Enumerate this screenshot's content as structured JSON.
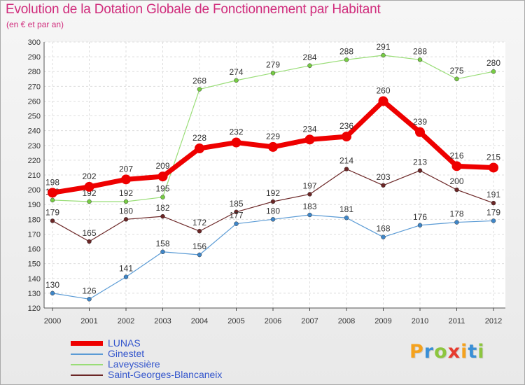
{
  "header": {
    "title": "Evolution de la Dotation Globale de Fonctionnement par Habitant",
    "subtitle": "(en € et par an)"
  },
  "brand": {
    "letters": [
      "P",
      "r",
      "o",
      "x",
      "i",
      "t",
      "i"
    ],
    "colors": [
      "#f5a21d",
      "#3a8fd6",
      "#8dc63f",
      "#e63c2f",
      "#f5a21d",
      "#3a8fd6",
      "#8dc63f"
    ]
  },
  "chart_data": {
    "type": "line",
    "title": "Evolution de la Dotation Globale de Fonctionnement par Habitant",
    "subtitle": "(en € et par an)",
    "xlabel": "",
    "ylabel": "",
    "x": [
      "2000",
      "2001",
      "2002",
      "2003",
      "2004",
      "2005",
      "2006",
      "2007",
      "2008",
      "2009",
      "2010",
      "2011",
      "2012"
    ],
    "ylim": [
      120,
      300
    ],
    "yticks": [
      120,
      130,
      140,
      150,
      160,
      170,
      180,
      190,
      200,
      210,
      220,
      230,
      240,
      250,
      260,
      270,
      280,
      290,
      300
    ],
    "grid": true,
    "legend_position": "bottom-left",
    "series": [
      {
        "name": "Laveyssière",
        "color": "#99dd77",
        "marker_color": "#77cc44",
        "width": 1.2,
        "values": [
          193,
          192,
          192,
          195,
          268,
          274,
          279,
          284,
          288,
          291,
          288,
          275,
          280
        ],
        "labels": [
          "193",
          "192",
          "192",
          "195",
          "268",
          "274",
          "279",
          "284",
          "288",
          "291",
          "288",
          "275",
          "280"
        ]
      },
      {
        "name": "Saint-Georges-Blancaneix",
        "color": "#6b2626",
        "marker_color": "#6b2626",
        "width": 1.2,
        "values": [
          179,
          165,
          180,
          182,
          172,
          185,
          192,
          197,
          214,
          203,
          213,
          200,
          191
        ],
        "labels": [
          "179",
          "165",
          "180",
          "182",
          "172",
          "185",
          "192",
          "197",
          "214",
          "203",
          "213",
          "200",
          "191"
        ]
      },
      {
        "name": "Ginestet",
        "color": "#5b9bd5",
        "marker_color": "#3f86c8",
        "width": 1.2,
        "values": [
          130,
          126,
          141,
          158,
          156,
          177,
          180,
          183,
          181,
          168,
          176,
          178,
          179
        ],
        "labels": [
          "130",
          "126",
          "141",
          "158",
          "156",
          "177",
          "180",
          "183",
          "181",
          "168",
          "176",
          "178",
          "179"
        ]
      },
      {
        "name": "LUNAS",
        "color": "#ee0000",
        "marker_color": "#ee0000",
        "width": 7,
        "values": [
          198,
          202,
          207,
          209,
          228,
          232,
          229,
          234,
          236,
          260,
          239,
          216,
          215
        ],
        "labels": [
          "198",
          "202",
          "207",
          "209",
          "228",
          "232",
          "229",
          "234",
          "236",
          "260",
          "239",
          "216",
          "215"
        ]
      }
    ]
  },
  "legend": {
    "items": [
      {
        "label": "LUNAS",
        "color": "#ee0000",
        "text_color": "#3355cc"
      },
      {
        "label": "Ginestet",
        "color": "#5b9bd5",
        "text_color": "#3355cc"
      },
      {
        "label": "Laveyssière",
        "color": "#99dd77",
        "text_color": "#3355cc"
      },
      {
        "label": "Saint-Georges-Blancaneix",
        "color": "#6b2626",
        "text_color": "#3355cc"
      }
    ]
  }
}
